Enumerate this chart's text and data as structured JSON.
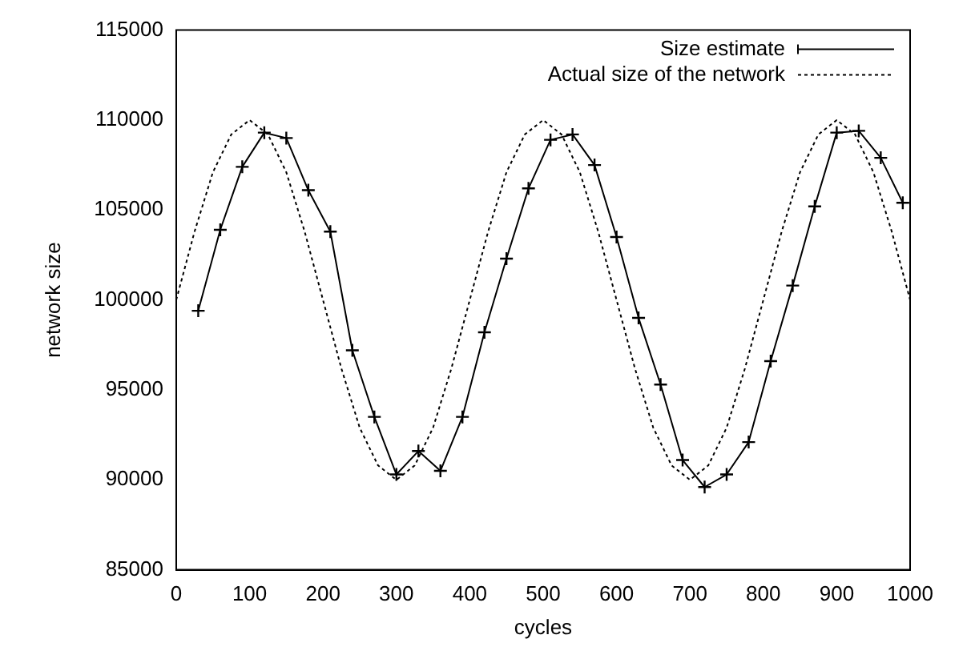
{
  "chart_data": {
    "type": "line",
    "xlabel": "cycles",
    "ylabel": "network size",
    "xlim": [
      0,
      1000
    ],
    "xticks": [
      0,
      100,
      200,
      300,
      400,
      500,
      600,
      700,
      800,
      900,
      1000
    ],
    "ylim": [
      85000,
      115000
    ],
    "yticks": [
      85000,
      90000,
      95000,
      100000,
      105000,
      110000,
      115000
    ],
    "grid": false,
    "legend": "top right",
    "series": [
      {
        "name": "Size estimate",
        "color": "#000000",
        "marker": "cross",
        "line_style": "solid",
        "x": [
          30,
          60,
          90,
          120,
          150,
          180,
          210,
          240,
          270,
          300,
          330,
          360,
          390,
          420,
          450,
          480,
          510,
          540,
          570,
          600,
          630,
          660,
          690,
          720,
          750,
          780,
          810,
          840,
          870,
          900,
          930,
          960,
          990
        ],
        "values": [
          99400,
          103900,
          107400,
          109300,
          109000,
          106100,
          103800,
          97200,
          93500,
          90300,
          91600,
          90500,
          93500,
          98200,
          102300,
          106200,
          108900,
          109200,
          107500,
          103500,
          99000,
          95300,
          91100,
          89600,
          90300,
          92100,
          96600,
          100800,
          105200,
          109300,
          109400,
          107900,
          105400
        ]
      },
      {
        "name": "Actual size of the network",
        "color": "#000000",
        "marker": "none",
        "line_style": "dotted",
        "x": [
          0,
          25,
          50,
          75,
          100,
          125,
          150,
          175,
          200,
          225,
          250,
          275,
          300,
          325,
          350,
          375,
          400,
          425,
          450,
          475,
          500,
          525,
          550,
          575,
          600,
          625,
          650,
          675,
          700,
          725,
          750,
          775,
          800,
          825,
          850,
          875,
          900,
          925,
          950,
          975,
          1000
        ],
        "values": [
          100000,
          103800,
          107100,
          109200,
          110000,
          109200,
          107100,
          103800,
          100000,
          96200,
          92900,
          90800,
          90000,
          90800,
          92900,
          96200,
          100000,
          103800,
          107100,
          109200,
          110000,
          109200,
          107100,
          103800,
          100000,
          96200,
          92900,
          90800,
          90000,
          90800,
          92900,
          96200,
          100000,
          103800,
          107100,
          109200,
          110000,
          109200,
          107100,
          103800,
          100000
        ]
      }
    ]
  }
}
